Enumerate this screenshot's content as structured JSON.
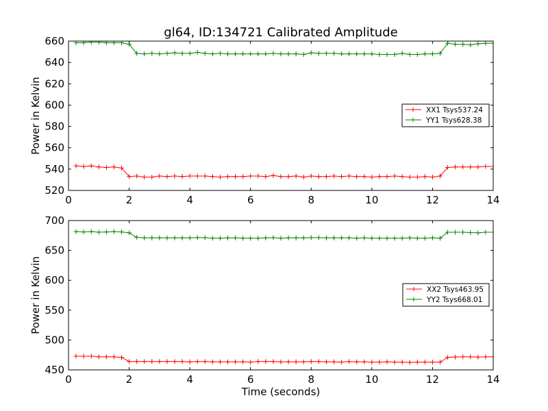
{
  "figure": {
    "title": "gl64, ID:134721 Calibrated Amplitude"
  },
  "chart_data": [
    {
      "type": "line",
      "title": "gl64, ID:134721 Calibrated Amplitude",
      "xlabel": "",
      "ylabel": "Power in Kelvin",
      "xlim": [
        0,
        14
      ],
      "ylim": [
        520,
        660
      ],
      "xticks": [
        0,
        2,
        4,
        6,
        8,
        10,
        12,
        14
      ],
      "yticks": [
        520,
        540,
        560,
        580,
        600,
        620,
        640,
        660
      ],
      "grid": false,
      "legend_position": "center-right",
      "x": [
        0.25,
        0.5,
        0.75,
        1.0,
        1.25,
        1.5,
        1.75,
        2.0,
        2.25,
        2.5,
        2.75,
        3.0,
        3.25,
        3.5,
        3.75,
        4.0,
        4.25,
        4.5,
        4.75,
        5.0,
        5.25,
        5.5,
        5.75,
        6.0,
        6.25,
        6.5,
        6.75,
        7.0,
        7.25,
        7.5,
        7.75,
        8.0,
        8.25,
        8.5,
        8.75,
        9.0,
        9.25,
        9.5,
        9.75,
        10.0,
        10.25,
        10.5,
        10.75,
        11.0,
        11.25,
        11.5,
        11.75,
        12.0,
        12.25,
        12.5,
        12.75,
        13.0,
        13.25,
        13.5,
        13.75,
        14.0
      ],
      "series": [
        {
          "name": "XX1 Tsys537.24",
          "color": "#ff0000",
          "values": [
            543,
            542.5,
            543,
            542,
            541.5,
            542,
            541,
            533,
            533.5,
            532.5,
            532.5,
            533.5,
            533,
            533.5,
            533,
            533.5,
            533.5,
            533.5,
            533,
            532.5,
            533,
            533,
            533,
            533.5,
            533.5,
            533,
            534,
            533,
            533,
            533.5,
            532.5,
            533.5,
            533,
            533,
            533.5,
            533,
            533.5,
            533,
            533,
            532.5,
            533,
            533,
            533.5,
            533,
            532.5,
            532.5,
            533,
            532.5,
            533.5,
            541.5,
            542,
            542,
            542,
            542,
            542.5,
            542.5
          ]
        },
        {
          "name": "YY1 Tsys628.38",
          "color": "#008000",
          "values": [
            658.5,
            658.5,
            659,
            659,
            658.5,
            658.5,
            658.5,
            657,
            648.5,
            648,
            648.5,
            648,
            648.5,
            649,
            648.5,
            648.5,
            649.5,
            648.5,
            648,
            648.5,
            648,
            648,
            648,
            648,
            648,
            648,
            648.5,
            648,
            648,
            648,
            647.5,
            649,
            648.5,
            648.5,
            648.5,
            648,
            648,
            648,
            648,
            648,
            647.5,
            647.5,
            647.5,
            648.5,
            647.5,
            647.5,
            648,
            648,
            648.5,
            658,
            657,
            657,
            656.5,
            657.5,
            658,
            658
          ]
        }
      ]
    },
    {
      "type": "line",
      "title": "",
      "xlabel": "Time (seconds)",
      "ylabel": "Power in Kelvin",
      "xlim": [
        0,
        14
      ],
      "ylim": [
        450,
        700
      ],
      "xticks": [
        0,
        2,
        4,
        6,
        8,
        10,
        12,
        14
      ],
      "yticks": [
        450,
        500,
        550,
        600,
        650,
        700
      ],
      "grid": false,
      "legend_position": "center-right",
      "x": [
        0.25,
        0.5,
        0.75,
        1.0,
        1.25,
        1.5,
        1.75,
        2.0,
        2.25,
        2.5,
        2.75,
        3.0,
        3.25,
        3.5,
        3.75,
        4.0,
        4.25,
        4.5,
        4.75,
        5.0,
        5.25,
        5.5,
        5.75,
        6.0,
        6.25,
        6.5,
        6.75,
        7.0,
        7.25,
        7.5,
        7.75,
        8.0,
        8.25,
        8.5,
        8.75,
        9.0,
        9.25,
        9.5,
        9.75,
        10.0,
        10.25,
        10.5,
        10.75,
        11.0,
        11.25,
        11.5,
        11.75,
        12.0,
        12.25,
        12.5,
        12.75,
        13.0,
        13.25,
        13.5,
        13.75,
        14.0
      ],
      "series": [
        {
          "name": "XX2 Tsys463.95",
          "color": "#ff0000",
          "values": [
            473,
            473,
            473,
            472,
            472,
            472,
            471,
            464,
            464,
            464,
            464,
            464,
            464,
            464,
            464,
            463.5,
            464,
            464,
            463.5,
            463.5,
            463.5,
            463.5,
            463.5,
            463,
            464,
            464,
            464,
            463.5,
            463.5,
            463.5,
            463.5,
            464,
            464,
            463.5,
            463.5,
            463,
            464,
            463.5,
            463.5,
            463,
            463,
            463.5,
            463,
            463,
            462.5,
            463,
            463,
            463,
            463,
            471,
            471.5,
            472,
            472,
            471.5,
            472,
            472
          ]
        },
        {
          "name": "YY2 Tsys668.01",
          "color": "#008000",
          "values": [
            681.5,
            681,
            681.5,
            680.5,
            681,
            681.5,
            681,
            679.5,
            672,
            671,
            671,
            671,
            671,
            671,
            671,
            671,
            671.5,
            671.5,
            670.5,
            670.5,
            671,
            671,
            670.5,
            670.5,
            670.5,
            671,
            671.5,
            670.5,
            671,
            671,
            671,
            671.5,
            671.5,
            671,
            671,
            671,
            671,
            670.5,
            671,
            670.5,
            670.5,
            670.5,
            670.5,
            670.5,
            671,
            670.5,
            670.5,
            671,
            670.5,
            680.5,
            680.5,
            680.5,
            680,
            679.5,
            680.5,
            680.5
          ]
        }
      ]
    }
  ]
}
